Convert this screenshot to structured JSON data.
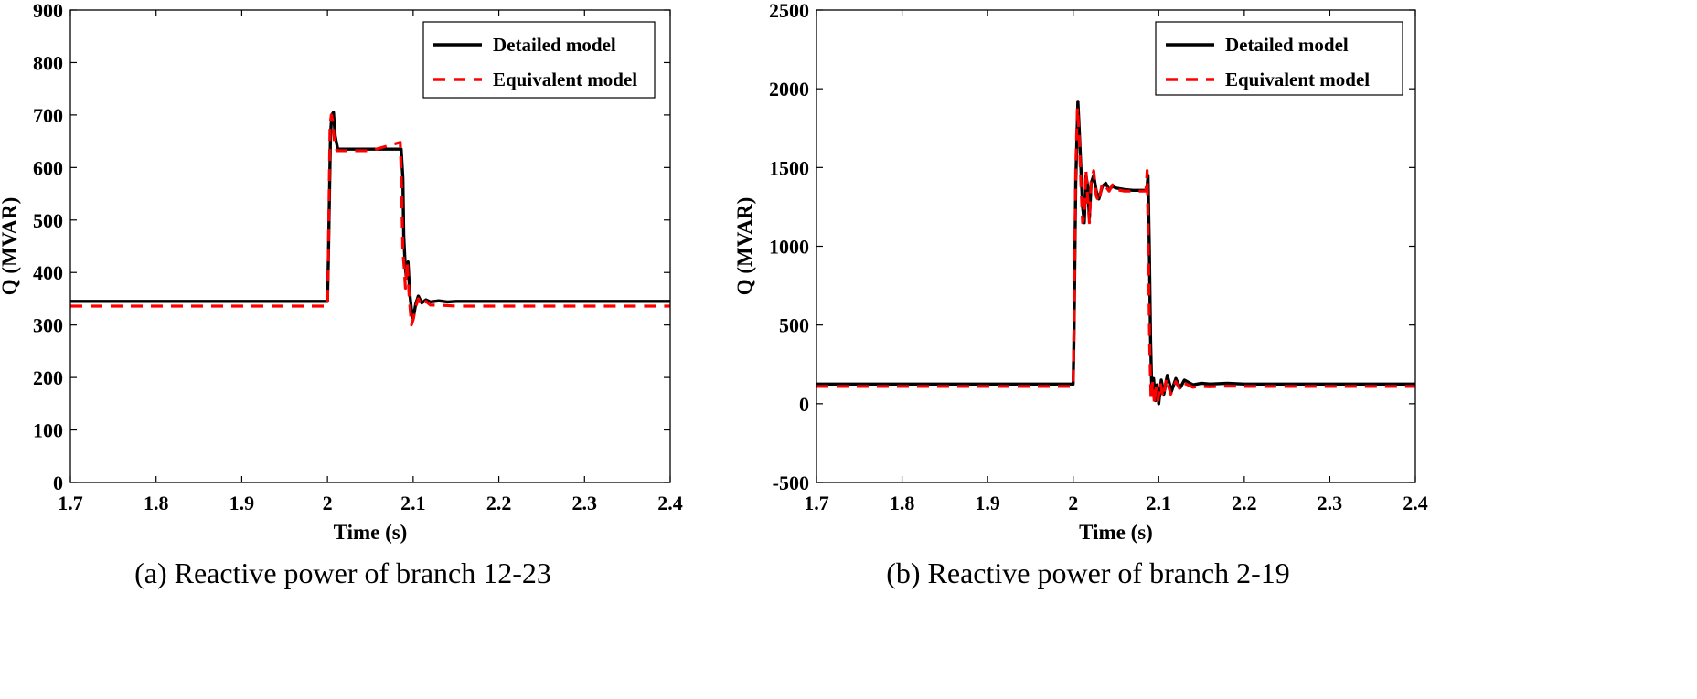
{
  "chart_data": [
    {
      "type": "line",
      "caption": "(a) Reactive power of branch 12-23",
      "xlabel": "Time (s)",
      "ylabel": "Q (MVAR)",
      "xlim": [
        1.7,
        2.4
      ],
      "ylim": [
        0,
        900
      ],
      "xticks": [
        1.7,
        1.8,
        1.9,
        2.0,
        2.1,
        2.2,
        2.3,
        2.4
      ],
      "xtick_labels": [
        "1.7",
        "1.8",
        "1.9",
        "2",
        "2.1",
        "2.2",
        "2.3",
        "2.4"
      ],
      "yticks": [
        0,
        100,
        200,
        300,
        400,
        500,
        600,
        700,
        800,
        900
      ],
      "ytick_labels": [
        "0",
        "100",
        "200",
        "300",
        "400",
        "500",
        "600",
        "700",
        "800",
        "900"
      ],
      "legend_position": "top-right",
      "grid": false,
      "series": [
        {
          "name": "Detailed model",
          "color": "#000000",
          "style": "solid",
          "x": [
            1.7,
            2.0,
            2.001,
            2.0035,
            2.005,
            2.007,
            2.009,
            2.012,
            2.02,
            2.05,
            2.086,
            2.088,
            2.089,
            2.0905,
            2.092,
            2.094,
            2.096,
            2.098,
            2.1,
            2.103,
            2.106,
            2.11,
            2.115,
            2.12,
            2.13,
            2.14,
            2.15,
            2.4
          ],
          "y": [
            345,
            345,
            420,
            660,
            700,
            705,
            660,
            635,
            635,
            635,
            635,
            580,
            470,
            420,
            390,
            420,
            360,
            330,
            312,
            340,
            355,
            342,
            348,
            344,
            346,
            344,
            345,
            345
          ]
        },
        {
          "name": "Equivalent model",
          "color": "#ff0000",
          "style": "dashed",
          "x": [
            1.7,
            2.0,
            2.001,
            2.003,
            2.0045,
            2.006,
            2.008,
            2.011,
            2.02,
            2.05,
            2.085,
            2.0865,
            2.088,
            2.0895,
            2.091,
            2.093,
            2.0955,
            2.098,
            2.1,
            2.103,
            2.106,
            2.11,
            2.115,
            2.12,
            2.13,
            2.15,
            2.4
          ],
          "y": [
            336,
            336,
            430,
            680,
            700,
            690,
            650,
            632,
            632,
            632,
            648,
            560,
            440,
            410,
            370,
            420,
            350,
            300,
            310,
            335,
            350,
            336,
            345,
            338,
            338,
            336,
            336
          ]
        }
      ]
    },
    {
      "type": "line",
      "caption": "(b) Reactive power of branch 2-19",
      "xlabel": "Time (s)",
      "ylabel": "Q (MVAR)",
      "xlim": [
        1.7,
        2.4
      ],
      "ylim": [
        -500,
        2500
      ],
      "xticks": [
        1.7,
        1.8,
        1.9,
        2.0,
        2.1,
        2.2,
        2.3,
        2.4
      ],
      "xtick_labels": [
        "1.7",
        "1.8",
        "1.9",
        "2",
        "2.1",
        "2.2",
        "2.3",
        "2.4"
      ],
      "yticks": [
        -500,
        0,
        500,
        1000,
        1500,
        2000,
        2500
      ],
      "ytick_labels": [
        "-500",
        "0",
        "500",
        "1000",
        "1500",
        "2000",
        "2500"
      ],
      "legend_position": "top-right",
      "grid": false,
      "series": [
        {
          "name": "Detailed model",
          "color": "#000000",
          "style": "solid",
          "x": [
            1.7,
            2.0,
            2.001,
            2.003,
            2.0055,
            2.007,
            2.009,
            2.011,
            2.013,
            2.015,
            2.017,
            2.019,
            2.021,
            2.024,
            2.027,
            2.03,
            2.034,
            2.038,
            2.042,
            2.046,
            2.05,
            2.06,
            2.07,
            2.086,
            2.0875,
            2.089,
            2.0905,
            2.092,
            2.094,
            2.096,
            2.098,
            2.1,
            2.103,
            2.106,
            2.11,
            2.115,
            2.12,
            2.125,
            2.13,
            2.14,
            2.15,
            2.16,
            2.18,
            2.2,
            2.3,
            2.4
          ],
          "y": [
            125,
            125,
            450,
            1400,
            1920,
            1750,
            1500,
            1250,
            1150,
            1450,
            1380,
            1180,
            1400,
            1450,
            1350,
            1300,
            1380,
            1400,
            1360,
            1380,
            1370,
            1360,
            1355,
            1355,
            1450,
            1000,
            400,
            60,
            160,
            20,
            120,
            0,
            150,
            60,
            180,
            80,
            160,
            100,
            150,
            120,
            130,
            125,
            130,
            125,
            125,
            125
          ]
        },
        {
          "name": "Equivalent model",
          "color": "#ff0000",
          "style": "dashed",
          "x": [
            1.7,
            2.0,
            2.001,
            2.003,
            2.005,
            2.007,
            2.009,
            2.011,
            2.013,
            2.015,
            2.017,
            2.019,
            2.021,
            2.024,
            2.027,
            2.03,
            2.034,
            2.038,
            2.042,
            2.046,
            2.05,
            2.06,
            2.07,
            2.085,
            2.0865,
            2.088,
            2.0895,
            2.091,
            2.093,
            2.095,
            2.097,
            2.099,
            2.102,
            2.105,
            2.109,
            2.114,
            2.12,
            2.125,
            2.13,
            2.14,
            2.15,
            2.16,
            2.18,
            2.2,
            2.3,
            2.4
          ],
          "y": [
            110,
            110,
            500,
            1500,
            1880,
            1700,
            1400,
            1150,
            1200,
            1480,
            1300,
            1150,
            1420,
            1480,
            1320,
            1280,
            1400,
            1380,
            1350,
            1390,
            1360,
            1350,
            1350,
            1350,
            1480,
            950,
            350,
            30,
            140,
            0,
            100,
            20,
            130,
            40,
            160,
            60,
            140,
            90,
            130,
            105,
            110,
            108,
            112,
            110,
            110,
            110
          ]
        }
      ]
    }
  ]
}
